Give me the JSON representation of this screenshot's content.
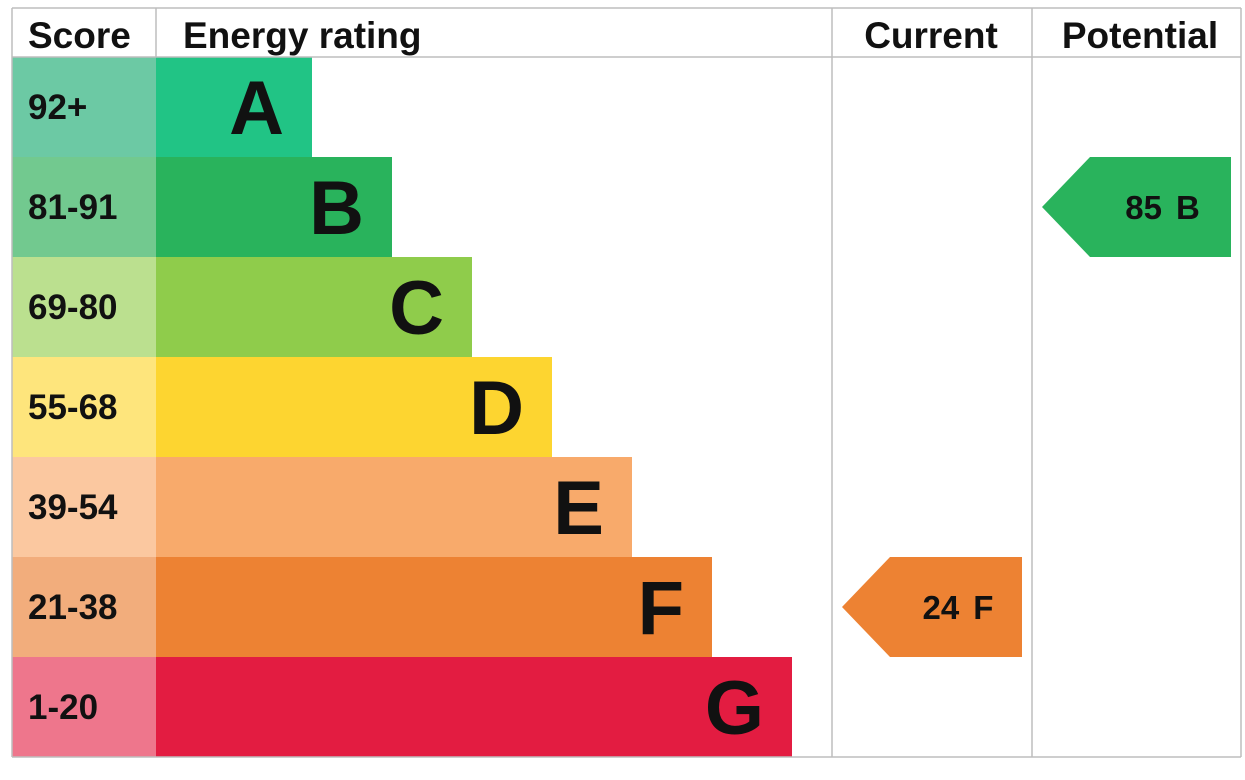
{
  "chart_data": {
    "type": "table",
    "headers": {
      "score": "Score",
      "rating": "Energy rating",
      "current": "Current",
      "potential": "Potential"
    },
    "bands": [
      {
        "letter": "A",
        "range": "92+",
        "min": 92,
        "color": "#21c485",
        "score_bg": "#6cc9a4"
      },
      {
        "letter": "B",
        "range": "81-91",
        "min": 81,
        "color": "#29b35c",
        "score_bg": "#72c98f"
      },
      {
        "letter": "C",
        "range": "69-80",
        "min": 69,
        "color": "#8fcc4b",
        "score_bg": "#bbe08f"
      },
      {
        "letter": "D",
        "range": "55-68",
        "min": 55,
        "color": "#fdd530",
        "score_bg": "#fee57c"
      },
      {
        "letter": "E",
        "range": "39-54",
        "min": 39,
        "color": "#f8aa6b",
        "score_bg": "#fbc8a0"
      },
      {
        "letter": "F",
        "range": "21-38",
        "min": 21,
        "color": "#ed8233",
        "score_bg": "#f2ad7c"
      },
      {
        "letter": "G",
        "range": "1-20",
        "min": 1,
        "color": "#e31c41",
        "score_bg": "#ee768c"
      }
    ],
    "current": {
      "score": 24,
      "band": "F",
      "color": "#ed8233"
    },
    "potential": {
      "score": 85,
      "band": "B",
      "color": "#29b35c"
    }
  }
}
